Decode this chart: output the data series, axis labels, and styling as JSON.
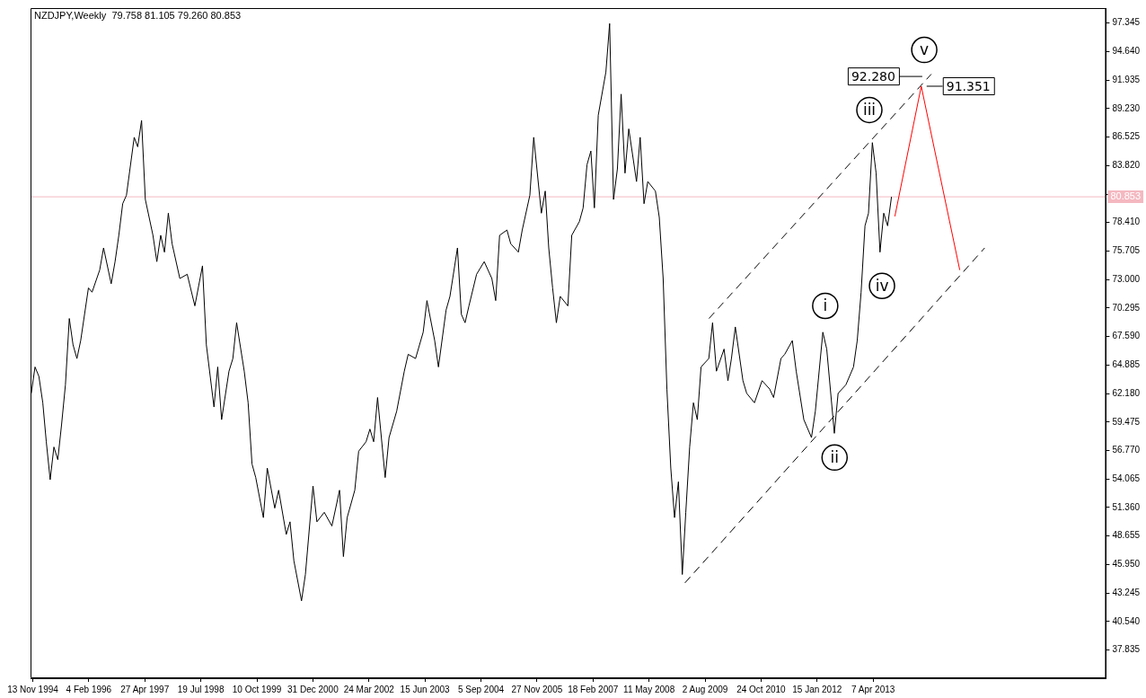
{
  "chart_data": {
    "type": "line",
    "title": "NZDJPY,Weekly  79.758 81.105 79.260 80.853",
    "xlim": [
      "1994-10-26",
      "2018-05-13"
    ],
    "xticks": [
      {
        "value": "1994-11-13",
        "label": "13 Nov 1994"
      },
      {
        "value": "1996-02-04",
        "label": "4 Feb 1996"
      },
      {
        "value": "1997-04-27",
        "label": "27 Apr 1997"
      },
      {
        "value": "1998-07-19",
        "label": "19 Jul 1998"
      },
      {
        "value": "1999-10-10",
        "label": "10 Oct 1999"
      },
      {
        "value": "2000-12-31",
        "label": "31 Dec 2000"
      },
      {
        "value": "2002-03-24",
        "label": "24 Mar 2002"
      },
      {
        "value": "2003-06-15",
        "label": "15 Jun 2003"
      },
      {
        "value": "2004-09-05",
        "label": "5 Sep 2004"
      },
      {
        "value": "2005-11-27",
        "label": "27 Nov 2005"
      },
      {
        "value": "2007-02-18",
        "label": "18 Feb 2007"
      },
      {
        "value": "2008-05-11",
        "label": "11 May 2008"
      },
      {
        "value": "2009-08-02",
        "label": "2 Aug 2009"
      },
      {
        "value": "2010-10-24",
        "label": "24 Oct 2010"
      },
      {
        "value": "2012-01-15",
        "label": "15 Jan 2012"
      },
      {
        "value": "2013-04-07",
        "label": "7 Apr 2013"
      }
    ],
    "ylim": [
      35.15,
      98.77
    ],
    "yticks": [
      97.345,
      {
        "value": 94.64,
        "label": "94.640"
      },
      {
        "value": 91.935,
        "label": "91.935"
      },
      {
        "value": 89.23,
        "label": "89.230"
      },
      86.525,
      {
        "value": 83.82,
        "label": "83.820"
      },
      {
        "value": 81.115,
        "label": null
      },
      {
        "value": 78.41,
        "label": "78.410"
      },
      75.705,
      {
        "value": 73,
        "label": "73.000"
      },
      70.295,
      {
        "value": 67.59,
        "label": "67.590"
      },
      64.885,
      {
        "value": 62.18,
        "label": "62.180"
      },
      59.475,
      {
        "value": 56.77,
        "label": "56.770"
      },
      54.065,
      {
        "value": 51.36,
        "label": "51.360"
      },
      48.655,
      {
        "value": 45.95,
        "label": "45.950"
      },
      43.245,
      {
        "value": 40.54,
        "label": "40.540"
      },
      37.835
    ],
    "grid": false,
    "legend": false,
    "marker": "none",
    "ref_lines": [
      {
        "axis": "y",
        "value": 80.853,
        "label": "80.853",
        "color": "#f4b8c0"
      }
    ],
    "annotations": [
      {
        "text": "i",
        "x": "2012-03-20",
        "y": 70.5
      },
      {
        "text": "ii",
        "x": "2012-06-03",
        "y": 56.1
      },
      {
        "text": "iii",
        "x": "2013-03-08",
        "y": 89.1
      },
      {
        "text": "iv",
        "x": "2013-06-17",
        "y": 72.4
      },
      {
        "text": "v",
        "x": "2014-05-21",
        "y": 94.8
      },
      {
        "text": "92.280",
        "x": "2014-07-16",
        "y": 92.28
      },
      {
        "text": "91.351",
        "x": "2014-04-27",
        "y": 91.351
      }
    ],
    "series": [
      {
        "color": "#000000",
        "line_style": "solid",
        "x": [
          "1994-11",
          "1994-12",
          "1995-01",
          "1995-02",
          "1995-03",
          "1995-04",
          "1995-05",
          "1995-06",
          "1995-07",
          "1995-08",
          "1995-09",
          "1995-10",
          "1995-11",
          "1995-12",
          "1996-02",
          "1996-03",
          "1996-05",
          "1996-06",
          "1996-08",
          "1996-09",
          "1996-10",
          "1996-11",
          "1996-12",
          "1997-02",
          "1997-03",
          "1997-04",
          "1997-05",
          "1997-07",
          "1997-08",
          "1997-09",
          "1997-10",
          "1997-11",
          "1997-12",
          "1998-02",
          "1998-04",
          "1998-06",
          "1998-08",
          "1998-09",
          "1998-11",
          "1998-12",
          "1999-01",
          "1999-03",
          "1999-04",
          "1999-05",
          "1999-07",
          "1999-08",
          "1999-09",
          "1999-10",
          "1999-12",
          "2000-01",
          "2000-03",
          "2000-04",
          "2000-06",
          "2000-07",
          "2000-08",
          "2000-10",
          "2000-11",
          "2001-01",
          "2001-02",
          "2001-04",
          "2001-06",
          "2001-08",
          "2001-09",
          "2001-10",
          "2001-12",
          "2002-01",
          "2002-03",
          "2002-04",
          "2002-05",
          "2002-06",
          "2002-08",
          "2002-09",
          "2002-11",
          "2003-01",
          "2003-02",
          "2003-04",
          "2003-06",
          "2003-07",
          "2003-09",
          "2003-10",
          "2003-12",
          "2004-01",
          "2004-03",
          "2004-04",
          "2004-05",
          "2004-06",
          "2004-08",
          "2004-10",
          "2004-12",
          "2005-01",
          "2005-02",
          "2005-04",
          "2005-05",
          "2005-07",
          "2005-08",
          "2005-10",
          "2005-11",
          "2006-01",
          "2006-02",
          "2006-03",
          "2006-04",
          "2006-05",
          "2006-06",
          "2006-08",
          "2006-09",
          "2006-11",
          "2006-12",
          "2007-01",
          "2007-02",
          "2007-03",
          "2007-04",
          "2007-06",
          "2007-07",
          "2007-08",
          "2007-09",
          "2007-10",
          "2007-11",
          "2007-12",
          "2008-02",
          "2008-03",
          "2008-04",
          "2008-05",
          "2008-07",
          "2008-08",
          "2008-09",
          "2008-10",
          "2008-11",
          "2008-12",
          "2009-01",
          "2009-02",
          "2009-03",
          "2009-04",
          "2009-05",
          "2009-06",
          "2009-07",
          "2009-09",
          "2009-10",
          "2009-11",
          "2010-01",
          "2010-02",
          "2010-03",
          "2010-04",
          "2010-06",
          "2010-07",
          "2010-09",
          "2010-11",
          "2011-01",
          "2011-02",
          "2011-04",
          "2011-05",
          "2011-07",
          "2011-08",
          "2011-10",
          "2011-12",
          "2012-01",
          "2012-03",
          "2012-04",
          "2012-06",
          "2012-07",
          "2012-09",
          "2012-11",
          "2012-12",
          "2013-01",
          "2013-02",
          "2013-03",
          "2013-04",
          "2013-05",
          "2013-06",
          "2013-07",
          "2013-08",
          "2013-09"
        ],
        "values": [
          62.2,
          64.7,
          63.8,
          61.3,
          57.6,
          54.0,
          57.1,
          55.9,
          59.2,
          63.0,
          69.3,
          66.8,
          65.5,
          67.2,
          72.2,
          71.8,
          73.9,
          76.0,
          72.6,
          74.7,
          77.2,
          80.2,
          81.0,
          86.5,
          85.6,
          88.1,
          80.6,
          77.2,
          74.7,
          77.2,
          75.6,
          79.3,
          76.4,
          73.1,
          73.5,
          70.5,
          74.3,
          66.8,
          60.9,
          64.7,
          59.7,
          64.3,
          65.5,
          68.9,
          64.3,
          61.3,
          55.5,
          54.2,
          50.4,
          55.1,
          51.3,
          53.0,
          48.8,
          50.0,
          46.3,
          42.5,
          45.0,
          53.4,
          50.0,
          50.9,
          49.6,
          53.0,
          46.7,
          50.4,
          53.0,
          56.7,
          57.6,
          58.8,
          57.6,
          61.8,
          54.2,
          58.0,
          60.5,
          64.3,
          65.9,
          65.5,
          68.0,
          71.0,
          67.2,
          64.7,
          70.1,
          71.4,
          76.0,
          69.7,
          68.9,
          70.5,
          73.5,
          74.7,
          73.1,
          71.0,
          77.2,
          77.7,
          76.4,
          75.6,
          77.7,
          81.0,
          86.5,
          79.3,
          81.4,
          76.0,
          72.2,
          68.9,
          71.4,
          70.5,
          77.2,
          78.5,
          79.8,
          83.9,
          85.2,
          79.8,
          88.6,
          92.7,
          97.3,
          80.6,
          83.5,
          90.6,
          83.1,
          87.3,
          82.3,
          86.5,
          80.2,
          82.3,
          81.4,
          78.9,
          73.1,
          62.6,
          55.1,
          50.4,
          53.8,
          45.0,
          50.9,
          57.1,
          61.3,
          59.7,
          64.7,
          65.5,
          68.9,
          64.3,
          66.4,
          63.4,
          65.5,
          68.5,
          63.4,
          62.2,
          61.3,
          63.4,
          62.6,
          61.8,
          65.5,
          65.9,
          67.2,
          64.3,
          59.7,
          58.0,
          60.5,
          68.0,
          66.4,
          58.4,
          62.2,
          63.0,
          64.7,
          67.2,
          71.8,
          78.1,
          79.3,
          86.0,
          83.1,
          75.6,
          79.3,
          78.1,
          80.853
        ]
      },
      {
        "color": "#000000",
        "line_style": "dashed",
        "x": [
          "2009-09-02",
          "2014-07-16"
        ],
        "values": [
          69.3,
          92.5
        ]
      },
      {
        "color": "#000000",
        "line_style": "dashed",
        "x": [
          "2009-02-22",
          "2015-09-16"
        ],
        "values": [
          44.2,
          76.0
        ]
      },
      {
        "color": "#ff0000",
        "line_style": "solid",
        "x": [
          "2013-09-28",
          "2014-04-27",
          "2015-03-01"
        ],
        "values": [
          79.0,
          91.351,
          73.9
        ]
      }
    ]
  }
}
